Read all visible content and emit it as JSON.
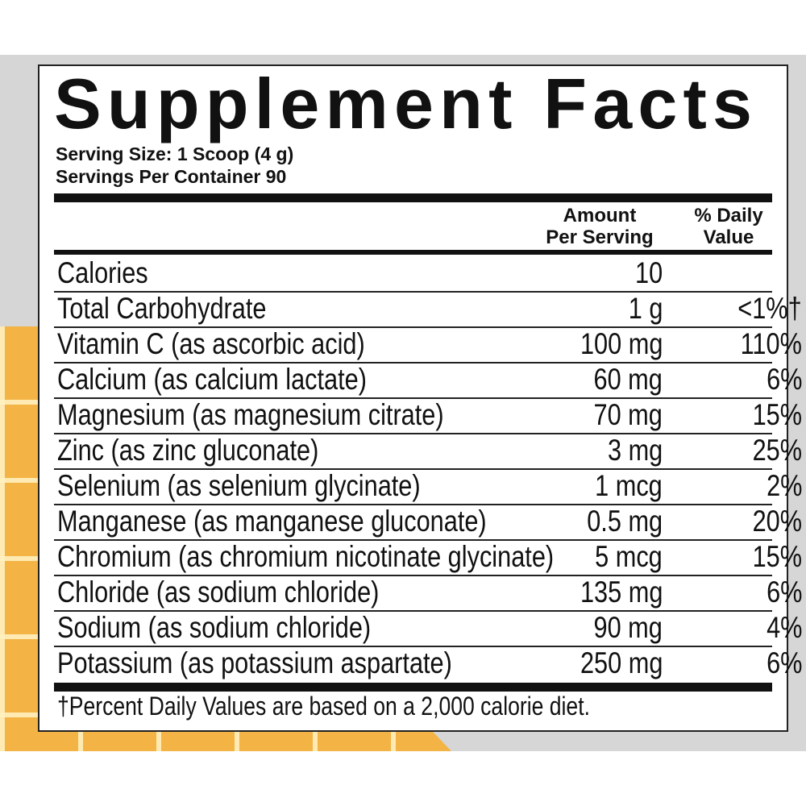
{
  "title": "Supplement Facts",
  "serving_size": "Serving Size: 1 Scoop (4 g)",
  "servings_per_container": "Servings Per Container 90",
  "headers": {
    "amount_line1": "Amount",
    "amount_line2": "Per Serving",
    "dv_line1": "% Daily",
    "dv_line2": "Value"
  },
  "rows": [
    {
      "name": "Calories",
      "amount": "10",
      "dv": ""
    },
    {
      "name": "Total Carbohydrate",
      "amount": "1 g",
      "dv": "<1%†"
    },
    {
      "name": "Vitamin C (as ascorbic acid)",
      "amount": "100 mg",
      "dv": "110%"
    },
    {
      "name": "Calcium (as calcium lactate)",
      "amount": "60 mg",
      "dv": "6%"
    },
    {
      "name": "Magnesium (as magnesium citrate)",
      "amount": "70 mg",
      "dv": "15%"
    },
    {
      "name": "Zinc (as zinc gluconate)",
      "amount": "3 mg",
      "dv": "25%"
    },
    {
      "name": "Selenium (as selenium glycinate)",
      "amount": "1 mcg",
      "dv": "2%"
    },
    {
      "name": "Manganese (as manganese gluconate)",
      "amount": "0.5 mg",
      "dv": "20%"
    },
    {
      "name": "Chromium (as chromium nicotinate glycinate)",
      "amount": "5 mcg",
      "dv": "15%"
    },
    {
      "name": "Chloride (as sodium chloride)",
      "amount": "135 mg",
      "dv": "6%"
    },
    {
      "name": "Sodium (as sodium chloride)",
      "amount": "90 mg",
      "dv": "4%"
    },
    {
      "name": "Potassium (as potassium aspartate)",
      "amount": "250 mg",
      "dv": "6%"
    }
  ],
  "footnote": "†Percent Daily Values are based on a 2,000 calorie diet.",
  "colors": {
    "background": "#d6d6d6",
    "accent_orange": "#f3b445"
  }
}
